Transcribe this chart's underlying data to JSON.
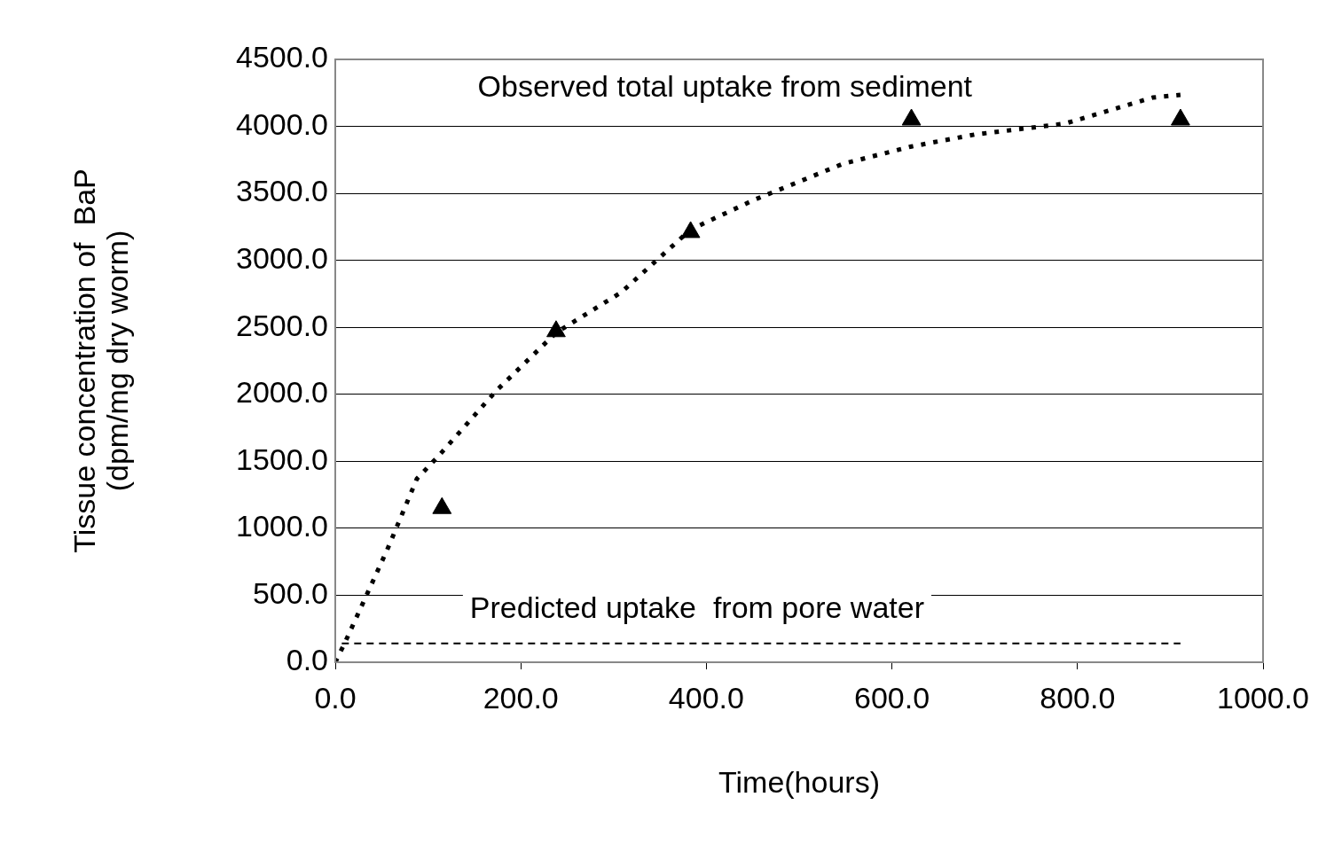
{
  "chart_data": {
    "type": "scatter",
    "xlabel": "Time(hours)",
    "ylabel": "Tissue concentration of  BaP\n(dpm/mg dry worm)",
    "xlim": [
      0,
      1000
    ],
    "xticks": [
      {
        "value": 0,
        "label": "0.0"
      },
      {
        "value": 200,
        "label": "200.0"
      },
      {
        "value": 400,
        "label": "400.0"
      },
      {
        "value": 600,
        "label": "600.0"
      },
      {
        "value": 800,
        "label": "800.0"
      },
      {
        "value": 1000,
        "label": "1000.0"
      }
    ],
    "ylim": [
      0,
      4500
    ],
    "yticks": [
      {
        "value": 0,
        "label": "0.0"
      },
      {
        "value": 500,
        "label": "500.0"
      },
      {
        "value": 1000,
        "label": "1000.0"
      },
      {
        "value": 1500,
        "label": "1500.0"
      },
      {
        "value": 2000,
        "label": "2000.0"
      },
      {
        "value": 2500,
        "label": "2500.0"
      },
      {
        "value": 3000,
        "label": "3000.0"
      },
      {
        "value": 3500,
        "label": "3500.0"
      },
      {
        "value": 4000,
        "label": "4000.0"
      },
      {
        "value": 4500,
        "label": "4500.0"
      }
    ],
    "grid": "y",
    "legend": false,
    "series": [
      {
        "color": "#000000",
        "marker": "triangle",
        "x": [
          115,
          238,
          383,
          621,
          911
        ],
        "values": [
          1150,
          2470,
          3210,
          4050,
          4050
        ]
      },
      {
        "type": "line",
        "color": "#000000",
        "marker": "none",
        "line_style": "dotted",
        "x": [
          0,
          10,
          56,
          88,
          110,
          174,
          238,
          308,
          383,
          451,
          547,
          621,
          690,
          786,
          881,
          911
        ],
        "values": [
          0,
          140,
          840,
          1370,
          1530,
          2030,
          2460,
          2760,
          3230,
          3450,
          3720,
          3850,
          3940,
          4020,
          4215,
          4235
        ]
      },
      {
        "type": "line",
        "color": "#000000",
        "marker": "none",
        "line_style": "dashed",
        "x": [
          7,
          911
        ],
        "values": [
          140,
          140
        ]
      }
    ],
    "annotations": [
      "Observed total uptake from sediment",
      "Predicted uptake  from pore water"
    ]
  }
}
